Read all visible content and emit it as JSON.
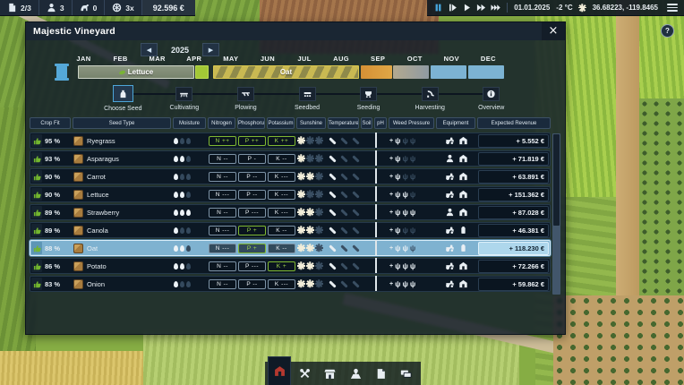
{
  "top_bar": {
    "stats": [
      {
        "icon": "contracts",
        "value": "2/3"
      },
      {
        "icon": "workers",
        "value": "3"
      },
      {
        "icon": "animals",
        "value": "0"
      },
      {
        "icon": "speed",
        "value": "3x"
      }
    ],
    "money": "92.596 €",
    "playback": [
      {
        "icon": "pause",
        "active": true
      },
      {
        "icon": "play-step"
      },
      {
        "icon": "play"
      },
      {
        "icon": "fast"
      },
      {
        "icon": "fastest"
      }
    ],
    "date": "01.01.2025",
    "temperature": "-2 °C",
    "coordinates": "36.68223, -119.8465"
  },
  "help_label": "?",
  "panel": {
    "title": "Majestic Vineyard",
    "close": "×",
    "year": "2025",
    "months": [
      "JAN",
      "FEB",
      "MAR",
      "APR",
      "MAY",
      "JUN",
      "JUL",
      "AUG",
      "SEP",
      "OCT",
      "NOV",
      "DEC"
    ],
    "timeline": {
      "crop1": "Lettuce",
      "crop2": "Oat"
    },
    "steps": [
      {
        "label": "Choose Seed",
        "icon": "sack",
        "active": true
      },
      {
        "label": "Cultivating",
        "icon": "cultivator"
      },
      {
        "label": "Plowing",
        "icon": "plow"
      },
      {
        "label": "Seedbed",
        "icon": "seedbed"
      },
      {
        "label": "Seeding",
        "icon": "seeder"
      },
      {
        "label": "Harvesting",
        "icon": "harvest"
      },
      {
        "label": "Overview",
        "icon": "info"
      }
    ],
    "table": {
      "headers": [
        "Crop Fit",
        "Seed Type",
        "Moisture",
        "Nitrogen",
        "Phosphorus",
        "Potassium",
        "Sunshine",
        "Temperature",
        "Soil",
        "pH",
        "Weed Pressure",
        "Equipment",
        "Expected Revenue"
      ],
      "rows": [
        {
          "fit": "95 %",
          "name": "Ryegrass",
          "moisture": 1,
          "n": {
            "v": "N ++",
            "pos": true
          },
          "p": {
            "v": "P ++",
            "pos": true
          },
          "k": {
            "v": "K ++",
            "pos": true
          },
          "sun": 1,
          "temp": 1,
          "weeds": 1,
          "equipment": [
            "tractor",
            "barn"
          ],
          "revenue": "+ 5.552 €"
        },
        {
          "fit": "93 %",
          "name": "Asparagus",
          "moisture": 2,
          "n": {
            "v": "N --"
          },
          "p": {
            "v": "P -"
          },
          "k": {
            "v": "K --"
          },
          "sun": 1,
          "temp": 1,
          "weeds": 1,
          "equipment": [
            "worker",
            "barn"
          ],
          "revenue": "+ 71.819 €"
        },
        {
          "fit": "90 %",
          "name": "Carrot",
          "moisture": 1,
          "n": {
            "v": "N --"
          },
          "p": {
            "v": "P --"
          },
          "k": {
            "v": "K ---"
          },
          "sun": 2,
          "temp": 1,
          "weeds": 1,
          "equipment": [
            "tractor",
            "barn"
          ],
          "revenue": "+ 63.891 €"
        },
        {
          "fit": "90 %",
          "name": "Lettuce",
          "moisture": 2,
          "n": {
            "v": "N ---"
          },
          "p": {
            "v": "P --"
          },
          "k": {
            "v": "K ---"
          },
          "sun": 1,
          "temp": 1,
          "weeds": 2,
          "equipment": [
            "tractor",
            "barn"
          ],
          "revenue": "+ 151.362 €"
        },
        {
          "fit": "89 %",
          "name": "Strawberry",
          "moisture": 3,
          "n": {
            "v": "N --"
          },
          "p": {
            "v": "P ---"
          },
          "k": {
            "v": "K ---"
          },
          "sun": 2,
          "temp": 1,
          "weeds": 3,
          "equipment": [
            "worker",
            "barn"
          ],
          "revenue": "+ 87.028 €"
        },
        {
          "fit": "89 %",
          "name": "Canola",
          "moisture": 1,
          "n": {
            "v": "N ---"
          },
          "p": {
            "v": "P +",
            "pos": true
          },
          "k": {
            "v": "K --"
          },
          "sun": 2,
          "temp": 1,
          "weeds": 1,
          "equipment": [
            "tractor",
            "harvester"
          ],
          "revenue": "+ 46.381 €"
        },
        {
          "fit": "88 %",
          "name": "Oat",
          "selected": true,
          "moisture": 2,
          "n": {
            "v": "N ---"
          },
          "p": {
            "v": "P +",
            "pos": true
          },
          "k": {
            "v": "K --"
          },
          "sun": 2,
          "temp": 1,
          "weeds": 2,
          "equipment": [
            "tractor",
            "harvester"
          ],
          "revenue": "+ 118.230 €"
        },
        {
          "fit": "86 %",
          "name": "Potato",
          "moisture": 2,
          "n": {
            "v": "N --"
          },
          "p": {
            "v": "P ---"
          },
          "k": {
            "v": "K +",
            "pos": true
          },
          "sun": 2,
          "temp": 1,
          "weeds": 3,
          "equipment": [
            "tractor",
            "barn"
          ],
          "revenue": "+ 72.266 €"
        },
        {
          "fit": "83 %",
          "name": "Onion",
          "moisture": 1,
          "n": {
            "v": "N --"
          },
          "p": {
            "v": "P --"
          },
          "k": {
            "v": "K ---"
          },
          "sun": 2,
          "temp": 1,
          "weeds": 3,
          "equipment": [
            "tractor",
            "barn"
          ],
          "revenue": "+ 59.862 €"
        }
      ]
    }
  },
  "bottom_bar": {
    "items": [
      {
        "icon": "barn",
        "active": true
      },
      {
        "icon": "tools"
      },
      {
        "icon": "shop"
      },
      {
        "icon": "fields"
      },
      {
        "icon": "contracts"
      },
      {
        "icon": "finances"
      }
    ]
  },
  "colors": {
    "accent_blue": "#4da6d9",
    "positive_green": "#7fb832",
    "selected_row": "#7fb2d0",
    "barn_red": "#b5382f",
    "timeline_orange": "#d59035",
    "timeline_oat_yellow": "#c9b952"
  }
}
